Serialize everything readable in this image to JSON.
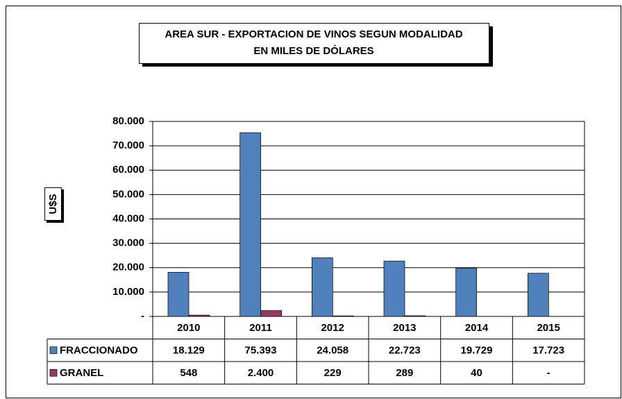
{
  "chart_data": {
    "type": "bar",
    "title": [
      "AREA SUR - EXPORTACION DE VINOS SEGUN MODALIDAD",
      "EN MILES DE DÓLARES"
    ],
    "y_label": "U$S",
    "categories": [
      "2010",
      "2011",
      "2012",
      "2013",
      "2014",
      "2015"
    ],
    "series": [
      {
        "name": "FRACCIONADO",
        "color": "#4f81bd",
        "values": [
          18129,
          75393,
          24058,
          22723,
          19729,
          17723
        ],
        "value_labels": [
          "18.129",
          "75.393",
          "24.058",
          "22.723",
          "19.729",
          "17.723"
        ]
      },
      {
        "name": "GRANEL",
        "color": "#953a64",
        "values": [
          548,
          2400,
          229,
          289,
          40,
          0
        ],
        "value_labels": [
          "548",
          "2.400",
          "229",
          "289",
          "40",
          "-"
        ]
      }
    ],
    "ylim": [
      0,
      80000
    ],
    "yticks": [
      {
        "value": 0,
        "label": "-"
      },
      {
        "value": 10000,
        "label": "10.000"
      },
      {
        "value": 20000,
        "label": "20.000"
      },
      {
        "value": 30000,
        "label": "30.000"
      },
      {
        "value": 40000,
        "label": "40.000"
      },
      {
        "value": 50000,
        "label": "50.000"
      },
      {
        "value": 60000,
        "label": "60.000"
      },
      {
        "value": 70000,
        "label": "70.000"
      },
      {
        "value": 80000,
        "label": "80.000"
      }
    ],
    "grid": true
  }
}
